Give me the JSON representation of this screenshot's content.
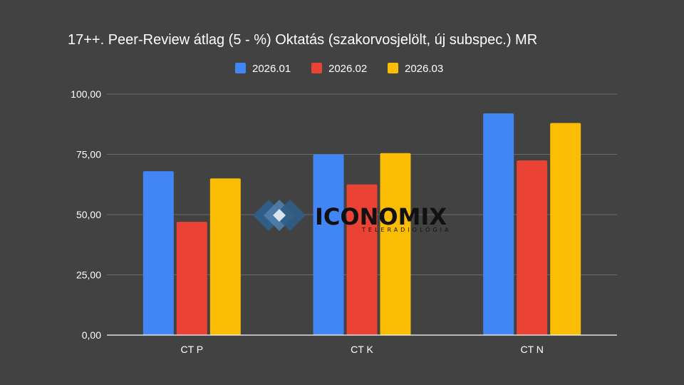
{
  "chart_data": {
    "type": "bar",
    "title": "17++. Peer-Review átlag (5 - %) Oktatás (szakorvosjelölt, új subspec.) MR",
    "categories": [
      "CT P",
      "CT K",
      "CT N"
    ],
    "series": [
      {
        "name": "2026.01",
        "color": "#4285F4",
        "values": [
          68,
          75,
          92
        ]
      },
      {
        "name": "2026.02",
        "color": "#EA4335",
        "values": [
          47,
          62.5,
          72.5
        ]
      },
      {
        "name": "2026.03",
        "color": "#FBBC04",
        "values": [
          65,
          75.5,
          88
        ]
      }
    ],
    "ylim": [
      0,
      100
    ],
    "yticks": [
      "0,00",
      "25,00",
      "50,00",
      "75,00",
      "100,00"
    ],
    "ytick_values": [
      0,
      25,
      50,
      75,
      100
    ],
    "grid": true,
    "legend_position": "top-center",
    "background": "#424242"
  },
  "watermark": {
    "icon": "iconomix-diamond-logo-icon",
    "word": "ICONOMIX",
    "subtitle": "TELERADIOLÓGIA"
  }
}
